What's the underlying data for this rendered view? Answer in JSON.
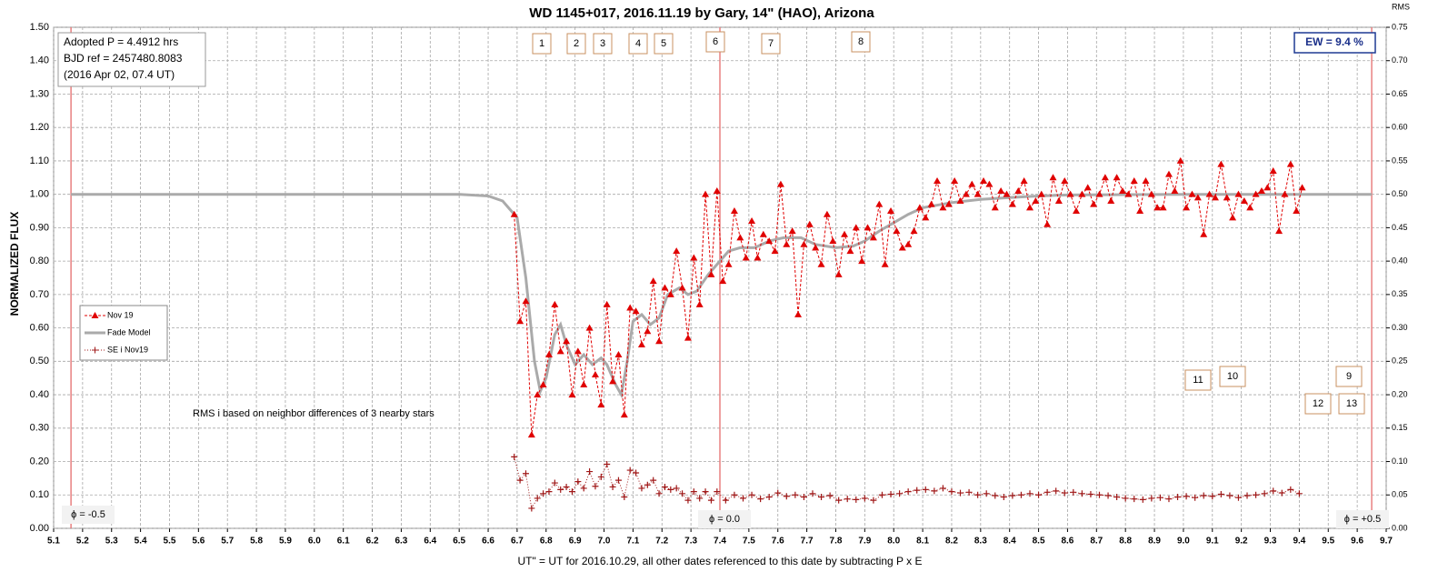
{
  "chart_data": {
    "type": "scatter",
    "title": "WD 1145+017, 2016.11.19 by Gary, 14\" (HAO), Arizona",
    "x_label": "UT\" = UT for 2016.10.29, all other dates referenced to this date by subtracting P x E",
    "y_label": "NORMALIZED FLUX",
    "y2_label": "RMS",
    "info": [
      "Adopted P = 4.4912 hrs",
      "BJD ref = 2457480.8083",
      "(2016 Apr 02, 07.4 UT)"
    ],
    "ew": "EW = 9.4 %",
    "note": "RMS i based on neighbor differences of 3 nearby stars",
    "box_labels": [
      "1",
      "2",
      "3",
      "4",
      "5",
      "6",
      "7",
      "8",
      "11",
      "10",
      "9",
      "12",
      "13"
    ],
    "phase_lines": [
      {
        "x": 5.16,
        "label": "ϕ = -0.5"
      },
      {
        "x": 7.4,
        "label": "ϕ = 0.0"
      },
      {
        "x": 9.65,
        "label": "ϕ = +0.5"
      }
    ],
    "grid": true,
    "legend": "left",
    "xlim": [
      5.1,
      9.7
    ],
    "ylim": [
      0,
      1.5
    ],
    "y2lim": [
      0,
      0.75
    ],
    "xticks": [
      5.1,
      5.2,
      5.3,
      5.4,
      5.5,
      5.6,
      5.7,
      5.8,
      5.9,
      {
        "value": 6,
        "label": "6.0"
      },
      6.1,
      6.2,
      6.3,
      6.4,
      6.5,
      6.6,
      6.7,
      6.8,
      6.9,
      {
        "value": 7,
        "label": "7.0"
      },
      7.1,
      7.2,
      7.3,
      7.4,
      7.5,
      7.6,
      7.7,
      7.8,
      7.9,
      {
        "value": 8,
        "label": "8.0"
      },
      8.1,
      8.2,
      8.3,
      8.4,
      8.5,
      8.6,
      8.7,
      8.8,
      8.9,
      {
        "value": 9,
        "label": "9.0"
      },
      9.1,
      9.2,
      9.3,
      9.4,
      9.5,
      9.6,
      9.7
    ],
    "yticks": [
      {
        "value": 0,
        "label": "0.00"
      },
      {
        "value": 0.1,
        "label": "0.10"
      },
      {
        "value": 0.2,
        "label": "0.20"
      },
      {
        "value": 0.3,
        "label": "0.30"
      },
      {
        "value": 0.4,
        "label": "0.40"
      },
      {
        "value": 0.5,
        "label": "0.50"
      },
      {
        "value": 0.6,
        "label": "0.60"
      },
      {
        "value": 0.7,
        "label": "0.70"
      },
      {
        "value": 0.8,
        "label": "0.80"
      },
      {
        "value": 0.9,
        "label": "0.90"
      },
      {
        "value": 1.0,
        "label": "1.00"
      },
      {
        "value": 1.1,
        "label": "1.10"
      },
      {
        "value": 1.2,
        "label": "1.20"
      },
      {
        "value": 1.3,
        "label": "1.30"
      },
      {
        "value": 1.4,
        "label": "1.40"
      },
      {
        "value": 1.5,
        "label": "1.50"
      }
    ],
    "y2ticks": [
      {
        "value": 0,
        "label": "0.00"
      },
      0.05,
      {
        "value": 0.1,
        "label": "0.10"
      },
      0.15,
      {
        "value": 0.2,
        "label": "0.20"
      },
      0.25,
      {
        "value": 0.3,
        "label": "0.30"
      },
      0.35,
      {
        "value": 0.4,
        "label": "0.40"
      },
      0.45,
      {
        "value": 0.5,
        "label": "0.50"
      },
      0.55,
      {
        "value": 0.6,
        "label": "0.60"
      },
      0.65,
      {
        "value": 0.7,
        "label": "0.70"
      },
      0.75
    ],
    "series": [
      {
        "name": "Nov 19",
        "color": "#e00000",
        "marker": "triangle",
        "line": "dashed",
        "x": [
          6.69,
          6.71,
          6.73,
          6.75,
          6.77,
          6.79,
          6.81,
          6.83,
          6.85,
          6.87,
          6.89,
          6.91,
          6.93,
          6.95,
          6.97,
          6.99,
          7.01,
          7.03,
          7.05,
          7.07,
          7.09,
          7.11,
          7.13,
          7.15,
          7.17,
          7.19,
          7.21,
          7.23,
          7.25,
          7.27,
          7.29,
          7.31,
          7.33,
          7.35,
          7.37,
          7.39,
          7.41,
          7.43,
          7.45,
          7.47,
          7.49,
          7.51,
          7.53,
          7.55,
          7.57,
          7.59,
          7.61,
          7.63,
          7.65,
          7.67,
          7.69,
          7.71,
          7.73,
          7.75,
          7.77,
          7.79,
          7.81,
          7.83,
          7.85,
          7.87,
          7.89,
          7.91,
          7.93,
          7.95,
          7.97,
          7.99,
          8.01,
          8.03,
          8.05,
          8.07,
          8.09,
          8.11,
          8.13,
          8.15,
          8.17,
          8.19,
          8.21,
          8.23,
          8.25,
          8.27,
          8.29,
          8.31,
          8.33,
          8.35,
          8.37,
          8.39,
          8.41,
          8.43,
          8.45,
          8.47,
          8.49,
          8.51,
          8.53,
          8.55,
          8.57,
          8.59,
          8.61,
          8.63,
          8.65,
          8.67,
          8.69,
          8.71,
          8.73,
          8.75,
          8.77,
          8.79,
          8.81,
          8.83,
          8.85,
          8.87,
          8.89,
          8.91,
          8.93,
          8.95,
          8.97,
          8.99,
          9.01,
          9.03,
          9.05,
          9.07,
          9.09,
          9.11,
          9.13,
          9.15,
          9.17,
          9.19,
          9.21,
          9.23,
          9.25,
          9.27,
          9.29,
          9.31,
          9.33,
          9.35,
          9.37,
          9.39,
          9.41
        ],
        "values": [
          0.94,
          0.62,
          0.68,
          0.28,
          0.4,
          0.43,
          0.52,
          0.67,
          0.53,
          0.56,
          0.4,
          0.53,
          0.43,
          0.6,
          0.46,
          0.37,
          0.67,
          0.44,
          0.52,
          0.34,
          0.66,
          0.65,
          0.55,
          0.59,
          0.74,
          0.56,
          0.72,
          0.7,
          0.83,
          0.72,
          0.57,
          0.81,
          0.67,
          1.0,
          0.76,
          1.01,
          0.74,
          0.79,
          0.95,
          0.87,
          0.81,
          0.92,
          0.81,
          0.88,
          0.86,
          0.83,
          1.03,
          0.85,
          0.89,
          0.64,
          0.85,
          0.91,
          0.84,
          0.79,
          0.94,
          0.86,
          0.76,
          0.88,
          0.83,
          0.9,
          0.8,
          0.9,
          0.87,
          0.97,
          0.79,
          0.95,
          0.89,
          0.84,
          0.85,
          0.89,
          0.96,
          0.93,
          0.97,
          1.04,
          0.96,
          0.97,
          1.04,
          0.98,
          1.0,
          1.03,
          1.0,
          1.04,
          1.03,
          0.96,
          1.01,
          1.0,
          0.97,
          1.01,
          1.04,
          0.96,
          0.98,
          1.0,
          0.91,
          1.05,
          0.98,
          1.04,
          1.0,
          0.95,
          1.0,
          1.02,
          0.97,
          1.0,
          1.05,
          0.98,
          1.05,
          1.01,
          1.0,
          1.04,
          0.95,
          1.04,
          1.0,
          0.96,
          0.96,
          1.06,
          1.01,
          1.1,
          0.96,
          1.0,
          0.99,
          0.88,
          1.0,
          0.99,
          1.09,
          0.99,
          0.93,
          1.0,
          0.98,
          0.96,
          1.0,
          1.01,
          1.02,
          1.07,
          0.89,
          1.0,
          1.09,
          0.95,
          1.02
        ]
      },
      {
        "name": "Fade Model",
        "color": "#aaaaaa",
        "marker": "none",
        "line": "solid",
        "x": [
          5.16,
          6.5,
          6.6,
          6.65,
          6.7,
          6.73,
          6.76,
          6.78,
          6.8,
          6.83,
          6.85,
          6.87,
          6.9,
          6.93,
          6.96,
          6.99,
          7.01,
          7.04,
          7.06,
          7.08,
          7.1,
          7.13,
          7.16,
          7.19,
          7.22,
          7.26,
          7.29,
          7.32,
          7.36,
          7.4,
          7.43,
          7.47,
          7.52,
          7.57,
          7.62,
          7.68,
          7.73,
          7.8,
          7.86,
          7.9,
          7.95,
          8.0,
          8.05,
          8.1,
          8.2,
          8.3,
          8.4,
          8.5,
          8.6,
          9.0,
          9.65
        ],
        "values": [
          1.0,
          1.0,
          0.995,
          0.98,
          0.93,
          0.75,
          0.5,
          0.41,
          0.45,
          0.58,
          0.61,
          0.55,
          0.49,
          0.52,
          0.49,
          0.51,
          0.49,
          0.43,
          0.4,
          0.5,
          0.62,
          0.64,
          0.61,
          0.63,
          0.7,
          0.72,
          0.7,
          0.71,
          0.76,
          0.8,
          0.83,
          0.84,
          0.84,
          0.86,
          0.87,
          0.87,
          0.85,
          0.84,
          0.845,
          0.86,
          0.89,
          0.915,
          0.94,
          0.96,
          0.975,
          0.985,
          0.99,
          0.995,
          0.998,
          1.0,
          1.0
        ]
      },
      {
        "name": "SE i Nov19",
        "color": "#a01818",
        "marker": "plus",
        "line": "dotted",
        "axis": "y2",
        "x": [
          6.69,
          6.71,
          6.73,
          6.75,
          6.77,
          6.79,
          6.81,
          6.83,
          6.85,
          6.87,
          6.89,
          6.91,
          6.93,
          6.95,
          6.97,
          6.99,
          7.01,
          7.03,
          7.05,
          7.07,
          7.09,
          7.11,
          7.13,
          7.15,
          7.17,
          7.19,
          7.21,
          7.23,
          7.25,
          7.27,
          7.29,
          7.31,
          7.33,
          7.35,
          7.37,
          7.39,
          7.42,
          7.45,
          7.48,
          7.51,
          7.54,
          7.57,
          7.6,
          7.63,
          7.66,
          7.69,
          7.72,
          7.75,
          7.78,
          7.81,
          7.84,
          7.87,
          7.9,
          7.93,
          7.96,
          7.99,
          8.02,
          8.05,
          8.08,
          8.11,
          8.14,
          8.17,
          8.2,
          8.23,
          8.26,
          8.29,
          8.32,
          8.35,
          8.38,
          8.41,
          8.44,
          8.47,
          8.5,
          8.53,
          8.56,
          8.59,
          8.62,
          8.65,
          8.68,
          8.71,
          8.74,
          8.77,
          8.8,
          8.83,
          8.86,
          8.89,
          8.92,
          8.95,
          8.98,
          9.01,
          9.04,
          9.07,
          9.1,
          9.13,
          9.16,
          9.19,
          9.22,
          9.25,
          9.28,
          9.31,
          9.34,
          9.37,
          9.4
        ],
        "values": [
          0.107,
          0.072,
          0.082,
          0.03,
          0.045,
          0.052,
          0.055,
          0.068,
          0.058,
          0.062,
          0.055,
          0.07,
          0.06,
          0.085,
          0.063,
          0.077,
          0.096,
          0.062,
          0.072,
          0.047,
          0.087,
          0.083,
          0.06,
          0.065,
          0.072,
          0.052,
          0.062,
          0.058,
          0.06,
          0.052,
          0.042,
          0.055,
          0.045,
          0.055,
          0.042,
          0.055,
          0.042,
          0.05,
          0.045,
          0.05,
          0.044,
          0.047,
          0.053,
          0.048,
          0.05,
          0.047,
          0.052,
          0.047,
          0.049,
          0.042,
          0.044,
          0.043,
          0.045,
          0.042,
          0.05,
          0.051,
          0.052,
          0.055,
          0.057,
          0.058,
          0.056,
          0.06,
          0.055,
          0.053,
          0.054,
          0.05,
          0.052,
          0.049,
          0.047,
          0.049,
          0.05,
          0.052,
          0.05,
          0.054,
          0.056,
          0.053,
          0.054,
          0.052,
          0.051,
          0.05,
          0.049,
          0.047,
          0.045,
          0.044,
          0.043,
          0.045,
          0.046,
          0.044,
          0.047,
          0.048,
          0.046,
          0.049,
          0.048,
          0.051,
          0.049,
          0.046,
          0.049,
          0.05,
          0.052,
          0.056,
          0.053,
          0.058,
          0.052
        ]
      }
    ]
  }
}
